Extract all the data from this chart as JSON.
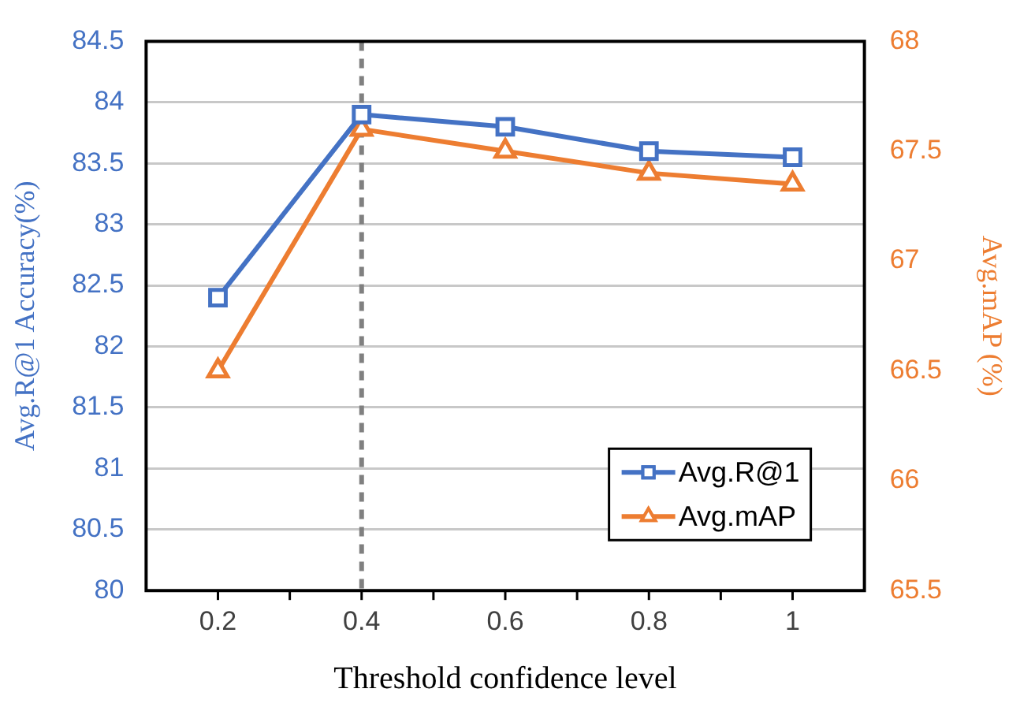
{
  "chart_data": {
    "type": "line",
    "xlabel": "Threshold confidence level",
    "ylabel": "Avg.R@1 Accuracy(%)",
    "y2label": "Avg.mAP (%)",
    "x": [
      0.2,
      0.4,
      0.6,
      0.8,
      1
    ],
    "series": [
      {
        "name": "Avg.R@1",
        "color": "#4472c4",
        "values": [
          82.4,
          83.9,
          83.8,
          83.6,
          83.55
        ],
        "marker": "square"
      },
      {
        "name": "Avg.mAP",
        "color": "#ed7d31",
        "values": [
          66.5,
          67.6,
          67.5,
          67.4,
          67.35
        ],
        "marker": "triangle",
        "axis": "y2"
      }
    ],
    "xlim": [
      0.1,
      1.1
    ],
    "xticks": [
      0.2,
      {
        "value": 0.3,
        "label": null
      },
      0.4,
      {
        "value": 0.5,
        "label": null
      },
      0.6,
      {
        "value": 0.7,
        "label": null
      },
      0.8,
      {
        "value": 0.9,
        "label": null
      },
      1
    ],
    "ylim": [
      80,
      84.5
    ],
    "yticks": [
      80,
      80.5,
      81,
      81.5,
      82,
      82.5,
      83,
      83.5,
      84,
      84.5
    ],
    "y2lim": [
      65.5,
      68
    ],
    "y2ticks": [
      65.5,
      66,
      66.5,
      67,
      67.5,
      68
    ],
    "ref_lines": [
      {
        "axis": "x",
        "value": 0.4,
        "color": "#808080",
        "line_style": "dashed"
      }
    ],
    "grid": "y",
    "legend": "bottom right",
    "line_style": "solid"
  }
}
